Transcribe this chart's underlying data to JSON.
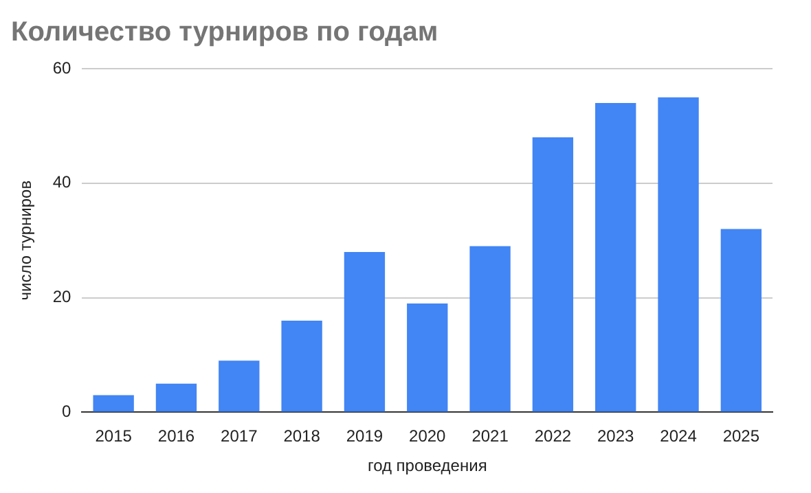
{
  "chart_data": {
    "type": "bar",
    "title": "Количество турниров по годам",
    "xlabel": "год проведения",
    "ylabel": "число турниров",
    "categories": [
      "2015",
      "2016",
      "2017",
      "2018",
      "2019",
      "2020",
      "2021",
      "2022",
      "2023",
      "2024",
      "2025"
    ],
    "values": [
      3,
      5,
      9,
      16,
      28,
      19,
      29,
      48,
      54,
      55,
      32
    ],
    "color": "#4285f4",
    "ylim": [
      0,
      60
    ],
    "yticks": [
      0,
      20,
      40,
      60
    ],
    "grid": "y",
    "legend": false
  }
}
